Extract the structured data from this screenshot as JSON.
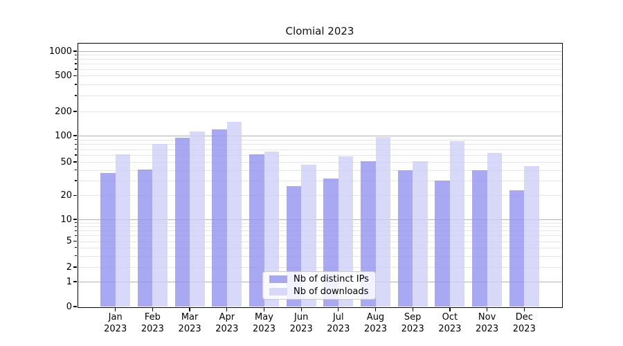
{
  "title": "Clomial 2023",
  "legend": {
    "entries": [
      {
        "label": "Nb of distinct IPs",
        "swatch_color": "#a8a8f2"
      },
      {
        "label": "Nb of downloads",
        "swatch_color": "#d8d8f8"
      }
    ]
  },
  "chart_data": {
    "type": "bar",
    "title": "Clomial 2023",
    "categories": [
      "Jan 2023",
      "Feb 2023",
      "Mar 2023",
      "Apr 2023",
      "May 2023",
      "Jun 2023",
      "Jul 2023",
      "Aug 2023",
      "Sep 2023",
      "Oct 2023",
      "Nov 2023",
      "Dec 2023"
    ],
    "series": [
      {
        "name": "Nb of distinct IPs",
        "color": "rgba(146,146,240,0.8)",
        "legend_color": "#a8a8f2",
        "values": [
          37,
          41,
          94,
          120,
          61,
          26,
          32,
          51,
          40,
          30,
          40,
          23
        ]
      },
      {
        "name": "Nb of downloads",
        "color": "rgba(206,206,246,0.8)",
        "legend_color": "#d8d8f8",
        "values": [
          61,
          80,
          113,
          150,
          66,
          46,
          58,
          96,
          51,
          87,
          63,
          45
        ]
      }
    ],
    "xlabel": "",
    "ylabel": "",
    "yscale": "symlog",
    "ylim": [
      0,
      1200
    ],
    "y_ticks": [
      1000,
      500,
      200,
      100,
      50,
      20,
      10,
      5,
      2,
      1,
      0
    ],
    "grid": "horizontal, major and minor",
    "legend_position": "lower center",
    "gridlines": {
      "major": [
        1,
        10,
        100,
        1000
      ],
      "minor": [
        2,
        3,
        4,
        5,
        6,
        7,
        8,
        9,
        20,
        30,
        40,
        50,
        60,
        70,
        80,
        90,
        200,
        300,
        400,
        500,
        600,
        700,
        800,
        900
      ]
    },
    "colors": {
      "major_grid": "#b2b2b2",
      "minor_grid": "#e6e6e6",
      "spine": "#000000"
    },
    "scale_anchors": [
      [
        1000,
        0.0289
      ],
      [
        500,
        0.1218
      ],
      [
        200,
        0.2579
      ],
      [
        100,
        0.35
      ],
      [
        50,
        0.45
      ],
      [
        20,
        0.5771
      ],
      [
        10,
        0.6684
      ],
      [
        5,
        0.7518
      ],
      [
        2,
        0.85
      ],
      [
        1,
        0.9053
      ],
      [
        0,
        1.0
      ]
    ]
  }
}
